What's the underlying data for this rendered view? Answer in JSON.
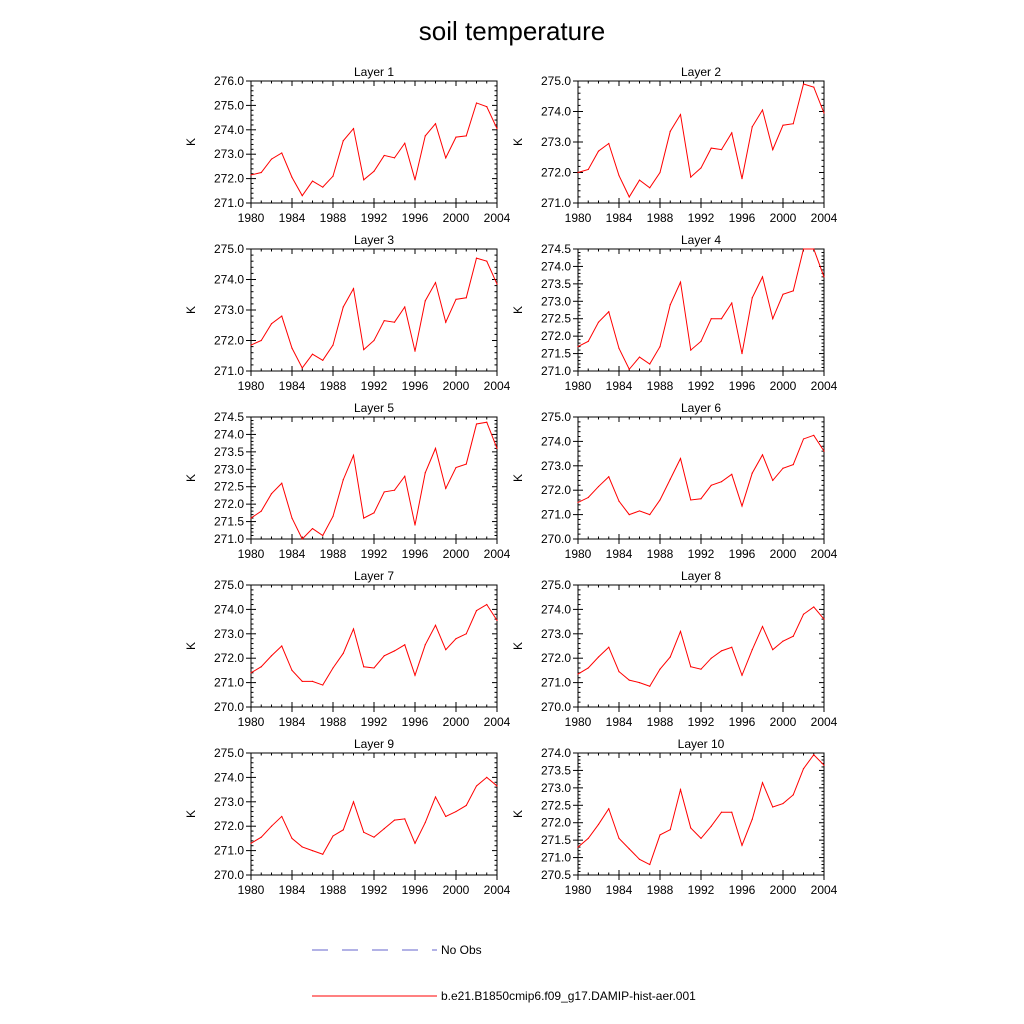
{
  "title": "soil temperature",
  "ylabel": "K",
  "colors": {
    "model": "#ff0000",
    "obs": "#6666cc"
  },
  "legend": {
    "obs_label": "No Obs",
    "model_label": "b.e21.B1850cmip6.f09_g17.DAMIP-hist-aer.001"
  },
  "chart_data": [
    {
      "type": "line",
      "title": "Layer 1",
      "x": [
        1980,
        1981,
        1982,
        1983,
        1984,
        1985,
        1986,
        1987,
        1988,
        1989,
        1990,
        1991,
        1992,
        1993,
        1994,
        1995,
        1996,
        1997,
        1998,
        1999,
        2000,
        2001,
        2002,
        2003,
        2004
      ],
      "series": [
        {
          "values": [
            272.15,
            272.25,
            272.8,
            273.05,
            272.05,
            271.3,
            271.9,
            271.65,
            272.1,
            273.55,
            274.05,
            271.95,
            272.3,
            272.95,
            272.85,
            273.45,
            271.95,
            273.75,
            274.25,
            272.85,
            273.7,
            273.75,
            275.1,
            274.95,
            274.05
          ]
        }
      ],
      "xlim": [
        1980,
        2004
      ],
      "ylim": [
        271.0,
        276.0
      ],
      "yticks": [
        "271.0",
        "272.0",
        "273.0",
        "274.0",
        "275.0",
        "276.0"
      ],
      "xticks": [
        "1980",
        "1984",
        "1988",
        "1992",
        "1996",
        "2000",
        "2004"
      ]
    },
    {
      "type": "line",
      "title": "Layer 2",
      "x": [
        1980,
        1981,
        1982,
        1983,
        1984,
        1985,
        1986,
        1987,
        1988,
        1989,
        1990,
        1991,
        1992,
        1993,
        1994,
        1995,
        1996,
        1997,
        1998,
        1999,
        2000,
        2001,
        2002,
        2003,
        2004
      ],
      "series": [
        {
          "values": [
            272.0,
            272.1,
            272.7,
            272.95,
            271.9,
            271.2,
            271.75,
            271.5,
            272.0,
            273.35,
            273.9,
            271.85,
            272.15,
            272.8,
            272.75,
            273.3,
            271.8,
            273.5,
            274.05,
            272.75,
            273.55,
            273.6,
            274.9,
            274.8,
            273.95
          ]
        }
      ],
      "xlim": [
        1980,
        2004
      ],
      "ylim": [
        271.0,
        275.0
      ],
      "yticks": [
        "271.0",
        "272.0",
        "273.0",
        "274.0",
        "275.0"
      ],
      "xticks": [
        "1980",
        "1984",
        "1988",
        "1992",
        "1996",
        "2000",
        "2004"
      ]
    },
    {
      "type": "line",
      "title": "Layer 3",
      "x": [
        1980,
        1981,
        1982,
        1983,
        1984,
        1985,
        1986,
        1987,
        1988,
        1989,
        1990,
        1991,
        1992,
        1993,
        1994,
        1995,
        1996,
        1997,
        1998,
        1999,
        2000,
        2001,
        2002,
        2003,
        2004
      ],
      "series": [
        {
          "values": [
            271.85,
            272.0,
            272.55,
            272.8,
            271.75,
            271.1,
            271.55,
            271.35,
            271.85,
            273.1,
            273.7,
            271.7,
            272.0,
            272.65,
            272.6,
            273.1,
            271.65,
            273.3,
            273.9,
            272.6,
            273.35,
            273.4,
            274.7,
            274.6,
            273.85
          ]
        }
      ],
      "xlim": [
        1980,
        2004
      ],
      "ylim": [
        271.0,
        275.0
      ],
      "yticks": [
        "271.0",
        "272.0",
        "273.0",
        "274.0",
        "275.0"
      ],
      "xticks": [
        "1980",
        "1984",
        "1988",
        "1992",
        "1996",
        "2000",
        "2004"
      ]
    },
    {
      "type": "line",
      "title": "Layer 4",
      "x": [
        1980,
        1981,
        1982,
        1983,
        1984,
        1985,
        1986,
        1987,
        1988,
        1989,
        1990,
        1991,
        1992,
        1993,
        1994,
        1995,
        1996,
        1997,
        1998,
        1999,
        2000,
        2001,
        2002,
        2003,
        2004
      ],
      "series": [
        {
          "values": [
            271.7,
            271.85,
            272.4,
            272.7,
            271.65,
            271.05,
            271.4,
            271.2,
            271.7,
            272.9,
            273.55,
            271.6,
            271.85,
            272.5,
            272.5,
            272.95,
            271.5,
            273.1,
            273.7,
            272.5,
            273.2,
            273.3,
            274.5,
            274.5,
            273.7
          ]
        }
      ],
      "xlim": [
        1980,
        2004
      ],
      "ylim": [
        271.0,
        274.5
      ],
      "yticks": [
        "271.0",
        "271.5",
        "272.0",
        "272.5",
        "273.0",
        "273.5",
        "274.0",
        "274.5"
      ],
      "xticks": [
        "1980",
        "1984",
        "1988",
        "1992",
        "1996",
        "2000",
        "2004"
      ]
    },
    {
      "type": "line",
      "title": "Layer 5",
      "x": [
        1980,
        1981,
        1982,
        1983,
        1984,
        1985,
        1986,
        1987,
        1988,
        1989,
        1990,
        1991,
        1992,
        1993,
        1994,
        1995,
        1996,
        1997,
        1998,
        1999,
        2000,
        2001,
        2002,
        2003,
        2004
      ],
      "series": [
        {
          "values": [
            271.6,
            271.8,
            272.3,
            272.6,
            271.6,
            271.0,
            271.3,
            271.1,
            271.65,
            272.7,
            273.4,
            271.6,
            271.75,
            272.35,
            272.4,
            272.8,
            271.4,
            272.9,
            273.6,
            272.45,
            273.05,
            273.15,
            274.3,
            274.35,
            273.6
          ]
        }
      ],
      "xlim": [
        1980,
        2004
      ],
      "ylim": [
        271.0,
        274.5
      ],
      "yticks": [
        "271.0",
        "271.5",
        "272.0",
        "272.5",
        "273.0",
        "273.5",
        "274.0",
        "274.5"
      ],
      "xticks": [
        "1980",
        "1984",
        "1988",
        "1992",
        "1996",
        "2000",
        "2004"
      ]
    },
    {
      "type": "line",
      "title": "Layer 6",
      "x": [
        1980,
        1981,
        1982,
        1983,
        1984,
        1985,
        1986,
        1987,
        1988,
        1989,
        1990,
        1991,
        1992,
        1993,
        1994,
        1995,
        1996,
        1997,
        1998,
        1999,
        2000,
        2001,
        2002,
        2003,
        2004
      ],
      "series": [
        {
          "values": [
            271.5,
            271.7,
            272.15,
            272.55,
            271.55,
            271.0,
            271.15,
            271.0,
            271.6,
            272.45,
            273.3,
            271.6,
            271.65,
            272.2,
            272.35,
            272.65,
            271.35,
            272.7,
            273.45,
            272.4,
            272.9,
            273.05,
            274.1,
            274.25,
            273.6
          ]
        }
      ],
      "xlim": [
        1980,
        2004
      ],
      "ylim": [
        270.0,
        275.0
      ],
      "yticks": [
        "270.0",
        "271.0",
        "272.0",
        "273.0",
        "274.0",
        "275.0"
      ],
      "xticks": [
        "1980",
        "1984",
        "1988",
        "1992",
        "1996",
        "2000",
        "2004"
      ]
    },
    {
      "type": "line",
      "title": "Layer 7",
      "x": [
        1980,
        1981,
        1982,
        1983,
        1984,
        1985,
        1986,
        1987,
        1988,
        1989,
        1990,
        1991,
        1992,
        1993,
        1994,
        1995,
        1996,
        1997,
        1998,
        1999,
        2000,
        2001,
        2002,
        2003,
        2004
      ],
      "series": [
        {
          "values": [
            271.4,
            271.65,
            272.1,
            272.5,
            271.5,
            271.05,
            271.05,
            270.9,
            271.6,
            272.2,
            273.2,
            271.65,
            271.6,
            272.1,
            272.3,
            272.55,
            271.3,
            272.55,
            273.35,
            272.35,
            272.8,
            273.0,
            273.95,
            274.2,
            273.55
          ]
        }
      ],
      "xlim": [
        1980,
        2004
      ],
      "ylim": [
        270.0,
        275.0
      ],
      "yticks": [
        "270.0",
        "271.0",
        "272.0",
        "273.0",
        "274.0",
        "275.0"
      ],
      "xticks": [
        "1980",
        "1984",
        "1988",
        "1992",
        "1996",
        "2000",
        "2004"
      ]
    },
    {
      "type": "line",
      "title": "Layer 8",
      "x": [
        1980,
        1981,
        1982,
        1983,
        1984,
        1985,
        1986,
        1987,
        1988,
        1989,
        1990,
        1991,
        1992,
        1993,
        1994,
        1995,
        1996,
        1997,
        1998,
        1999,
        2000,
        2001,
        2002,
        2003,
        2004
      ],
      "series": [
        {
          "values": [
            271.35,
            271.6,
            272.05,
            272.45,
            271.45,
            271.1,
            271.0,
            270.85,
            271.55,
            272.05,
            273.1,
            271.65,
            271.55,
            272.0,
            272.3,
            272.45,
            271.3,
            272.35,
            273.3,
            272.35,
            272.7,
            272.9,
            273.8,
            274.1,
            273.6
          ]
        }
      ],
      "xlim": [
        1980,
        2004
      ],
      "ylim": [
        270.0,
        275.0
      ],
      "yticks": [
        "270.0",
        "271.0",
        "272.0",
        "273.0",
        "274.0",
        "275.0"
      ],
      "xticks": [
        "1980",
        "1984",
        "1988",
        "1992",
        "1996",
        "2000",
        "2004"
      ]
    },
    {
      "type": "line",
      "title": "Layer 9",
      "x": [
        1980,
        1981,
        1982,
        1983,
        1984,
        1985,
        1986,
        1987,
        1988,
        1989,
        1990,
        1991,
        1992,
        1993,
        1994,
        1995,
        1996,
        1997,
        1998,
        1999,
        2000,
        2001,
        2002,
        2003,
        2004
      ],
      "series": [
        {
          "values": [
            271.3,
            271.55,
            272.0,
            272.4,
            271.5,
            271.15,
            271.0,
            270.85,
            271.6,
            271.85,
            273.0,
            271.75,
            271.55,
            271.9,
            272.25,
            272.3,
            271.3,
            272.15,
            273.2,
            272.4,
            272.6,
            272.85,
            273.65,
            274.0,
            273.65
          ]
        }
      ],
      "xlim": [
        1980,
        2004
      ],
      "ylim": [
        270.0,
        275.0
      ],
      "yticks": [
        "270.0",
        "271.0",
        "272.0",
        "273.0",
        "274.0",
        "275.0"
      ],
      "xticks": [
        "1980",
        "1984",
        "1988",
        "1992",
        "1996",
        "2000",
        "2004"
      ]
    },
    {
      "type": "line",
      "title": "Layer 10",
      "x": [
        1980,
        1981,
        1982,
        1983,
        1984,
        1985,
        1986,
        1987,
        1988,
        1989,
        1990,
        1991,
        1992,
        1993,
        1994,
        1995,
        1996,
        1997,
        1998,
        1999,
        2000,
        2001,
        2002,
        2003,
        2004
      ],
      "series": [
        {
          "values": [
            271.3,
            271.55,
            271.95,
            272.4,
            271.55,
            271.25,
            270.95,
            270.8,
            271.65,
            271.8,
            272.95,
            271.85,
            271.55,
            271.9,
            272.3,
            272.3,
            271.35,
            272.1,
            273.15,
            272.45,
            272.55,
            272.8,
            273.55,
            273.95,
            273.65
          ]
        }
      ],
      "xlim": [
        1980,
        2004
      ],
      "ylim": [
        270.5,
        274.0
      ],
      "yticks": [
        "270.5",
        "271.0",
        "271.5",
        "272.0",
        "272.5",
        "273.0",
        "273.5",
        "274.0"
      ],
      "xticks": [
        "1980",
        "1984",
        "1988",
        "1992",
        "1996",
        "2000",
        "2004"
      ]
    }
  ]
}
